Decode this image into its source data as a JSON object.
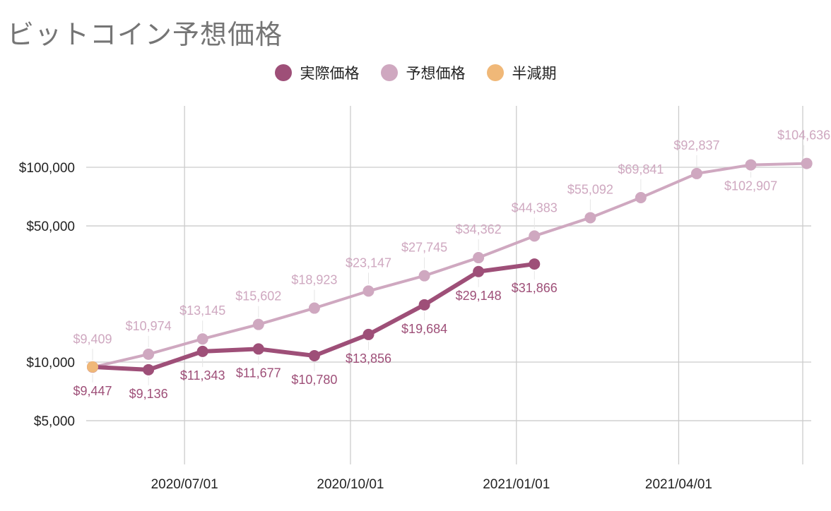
{
  "chart_data": {
    "type": "line",
    "title": "ビットコイン予想価格",
    "y_scale": "log",
    "ylim": [
      3000,
      170000
    ],
    "y_ticks": [
      {
        "value": 5000,
        "label": "$5,000"
      },
      {
        "value": 10000,
        "label": "$10,000"
      },
      {
        "value": 50000,
        "label": "$50,000"
      },
      {
        "value": 100000,
        "label": "$100,000"
      }
    ],
    "xlim": [
      "2020-05-11",
      "2021-06-08"
    ],
    "x_ticks": [
      {
        "value": "2020-07-01",
        "label": "2020/07/01"
      },
      {
        "value": "2020-10-01",
        "label": "2020/10/01"
      },
      {
        "value": "2021-01-01",
        "label": "2021/01/01"
      },
      {
        "value": "2021-04-01",
        "label": "2021/04/01"
      }
    ],
    "grid": true,
    "legend_position": "top-center",
    "series": [
      {
        "name": "予想価格",
        "color": "#cfa8c0",
        "points": [
          {
            "x": "2020-05-11",
            "y": 9409,
            "label": "$9,409"
          },
          {
            "x": "2020-06-11",
            "y": 10974,
            "label": "$10,974"
          },
          {
            "x": "2020-07-11",
            "y": 13145,
            "label": "$13,145"
          },
          {
            "x": "2020-08-11",
            "y": 15602,
            "label": "$15,602"
          },
          {
            "x": "2020-09-11",
            "y": 18923,
            "label": "$18,923"
          },
          {
            "x": "2020-10-11",
            "y": 23147,
            "label": "$23,147"
          },
          {
            "x": "2020-11-11",
            "y": 27745,
            "label": "$27,745"
          },
          {
            "x": "2020-12-11",
            "y": 34362,
            "label": "$34,362"
          },
          {
            "x": "2021-01-11",
            "y": 44383,
            "label": "$44,383"
          },
          {
            "x": "2021-02-11",
            "y": 55092,
            "label": "$55,092"
          },
          {
            "x": "2021-03-11",
            "y": 69841,
            "label": "$69,841"
          },
          {
            "x": "2021-04-11",
            "y": 92837,
            "label": "$92,837"
          },
          {
            "x": "2021-05-11",
            "y": 102907,
            "label": "$102,907"
          },
          {
            "x": "2021-06-11",
            "y": 104636,
            "label": "$104,636"
          }
        ]
      },
      {
        "name": "実際価格",
        "color": "#9e4f78",
        "points": [
          {
            "x": "2020-05-11",
            "y": 9447,
            "label": "$9,447"
          },
          {
            "x": "2020-06-11",
            "y": 9136,
            "label": "$9,136"
          },
          {
            "x": "2020-07-11",
            "y": 11343,
            "label": "$11,343"
          },
          {
            "x": "2020-08-11",
            "y": 11677,
            "label": "$11,677"
          },
          {
            "x": "2020-09-11",
            "y": 10780,
            "label": "$10,780"
          },
          {
            "x": "2020-10-11",
            "y": 13856,
            "label": "$13,856"
          },
          {
            "x": "2020-11-11",
            "y": 19684,
            "label": "$19,684"
          },
          {
            "x": "2020-12-11",
            "y": 29148,
            "label": "$29,148"
          },
          {
            "x": "2021-01-11",
            "y": 31866,
            "label": "$31,866"
          }
        ]
      },
      {
        "name": "半減期",
        "color": "#f0b878",
        "points": [
          {
            "x": "2020-05-11",
            "y": 9447
          }
        ]
      }
    ],
    "legend_order": [
      "実際価格",
      "予想価格",
      "半減期"
    ]
  }
}
